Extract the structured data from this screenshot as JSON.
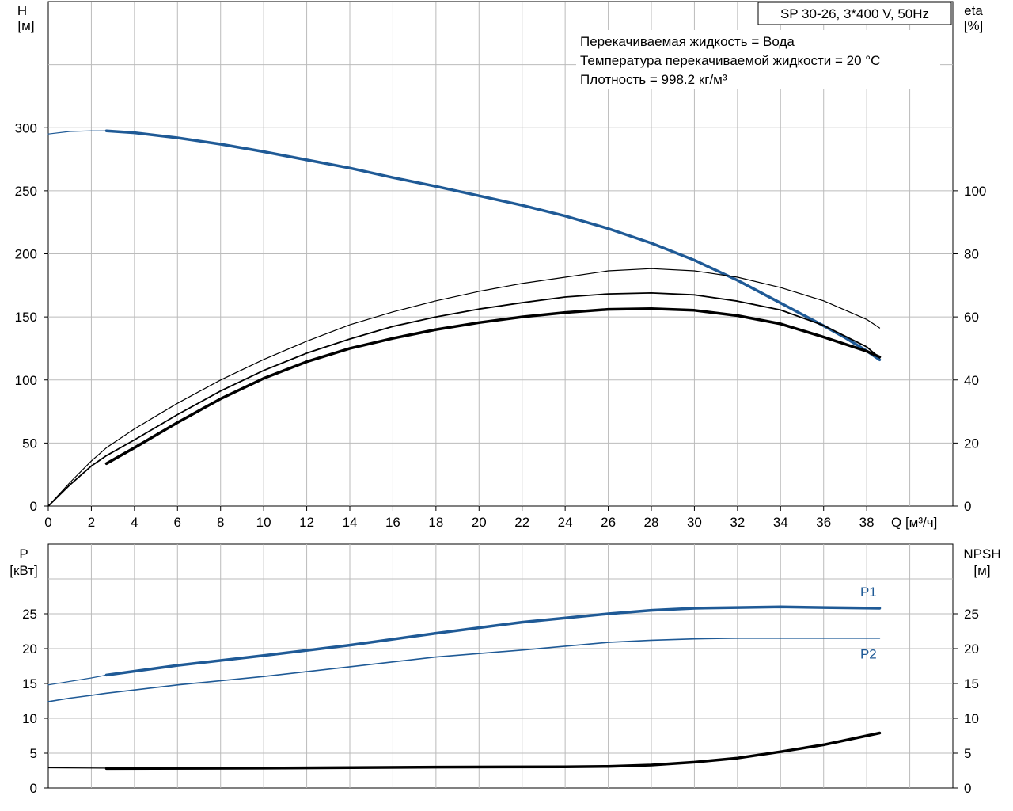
{
  "title": "SP 30-26, 3*400 V, 50Hz",
  "info_lines": [
    "Перекачиваемая жидкость = Вода",
    "Температура перекачиваемой жидкости = 20 °C",
    "Плотность = 998.2 кг/м³"
  ],
  "colors": {
    "blue": "#1f5a96",
    "black": "#000000",
    "grid": "#bbbbbb"
  },
  "chart_data": [
    {
      "type": "line",
      "name": "top",
      "xlabel": "Q [м³/ч]",
      "ylabel_left": [
        "H",
        "[м]"
      ],
      "ylabel_right": [
        "eta",
        "[%]"
      ],
      "xlim": [
        0,
        42
      ],
      "ylim_left": [
        0,
        400
      ],
      "ylim_right": [
        0,
        160
      ],
      "x_ticks": [
        0,
        2,
        4,
        6,
        8,
        10,
        12,
        14,
        16,
        18,
        20,
        22,
        24,
        26,
        28,
        30,
        32,
        34,
        36,
        38
      ],
      "y_ticks_left": [
        0,
        50,
        100,
        150,
        200,
        250,
        300
      ],
      "y_ticks_right": [
        0,
        20,
        40,
        60,
        80,
        100
      ],
      "grid": true,
      "series": [
        {
          "axis": "left",
          "color": "blue",
          "width": 1.2,
          "x": [
            0,
            1,
            2,
            2.7
          ],
          "y": [
            295,
            297,
            297.5,
            297.5
          ]
        },
        {
          "axis": "left",
          "color": "blue",
          "width": 3.5,
          "x": [
            2.7,
            4,
            6,
            8,
            10,
            12,
            14,
            16,
            18,
            20,
            22,
            24,
            26,
            28,
            30,
            32,
            34,
            36,
            37,
            38,
            38.6
          ],
          "y": [
            297.5,
            296,
            292,
            287,
            281,
            274.5,
            268,
            260.5,
            253.5,
            246,
            238.5,
            230,
            220,
            208.5,
            195,
            179,
            161,
            143,
            133.5,
            123,
            116
          ]
        },
        {
          "axis": "right",
          "color": "black",
          "width": 1.8,
          "x": [
            0,
            1,
            2,
            2.7,
            4,
            6,
            8,
            10,
            12,
            14,
            16,
            18,
            20,
            22,
            24,
            26,
            28,
            30,
            32,
            34,
            36,
            38,
            38.6
          ],
          "y": [
            0,
            6.7,
            12.7,
            16,
            21,
            29,
            36.5,
            43,
            48.5,
            53,
            57,
            60,
            62.5,
            64.5,
            66.3,
            67.3,
            67.6,
            67,
            65,
            62.2,
            57.3,
            50.5,
            47
          ]
        },
        {
          "axis": "right",
          "color": "black",
          "width": 3.5,
          "x": [
            2.7,
            4,
            6,
            8,
            10,
            12,
            14,
            16,
            18,
            20,
            22,
            24,
            26,
            28,
            30,
            32,
            34,
            36,
            38,
            38.6
          ],
          "y": [
            13.5,
            18.5,
            26.5,
            34,
            40.5,
            45.8,
            50,
            53.2,
            56,
            58.2,
            60,
            61.4,
            62.4,
            62.6,
            62.1,
            60.4,
            57.8,
            53.6,
            49.1,
            47.3
          ]
        },
        {
          "axis": "right",
          "color": "black",
          "width": 1.2,
          "x": [
            0,
            1,
            2,
            2.7,
            4,
            6,
            8,
            10,
            12,
            14,
            16,
            18,
            20,
            22,
            24,
            26,
            28,
            30,
            32,
            34,
            36,
            38,
            38.6
          ],
          "y": [
            0,
            7.4,
            14.3,
            18.5,
            24.5,
            32.6,
            40,
            46.5,
            52.3,
            57.5,
            61.6,
            65.1,
            68.1,
            70.6,
            72.6,
            74.6,
            75.3,
            74.6,
            72.6,
            69.3,
            65.1,
            59.2,
            56.5
          ]
        }
      ]
    },
    {
      "type": "line",
      "name": "bottom",
      "ylabel_left": [
        "P",
        "[кВт]"
      ],
      "ylabel_right": [
        "NPSH",
        "[м]"
      ],
      "xlim": [
        0,
        42
      ],
      "ylim_left": [
        0,
        35
      ],
      "ylim_right": [
        0,
        35
      ],
      "y_ticks_left": [
        0,
        5,
        10,
        15,
        20,
        25
      ],
      "y_ticks_right": [
        0,
        5,
        10,
        15,
        20,
        25
      ],
      "grid": true,
      "series_labels": [
        {
          "text": "P1",
          "x": 37.7,
          "y": 27.5,
          "color": "blue"
        },
        {
          "text": "P2",
          "x": 37.7,
          "y": 18.6,
          "color": "blue"
        }
      ],
      "series": [
        {
          "axis": "left",
          "color": "blue",
          "width": 1.2,
          "x": [
            0,
            1,
            2,
            2.7
          ],
          "y": [
            14.8,
            15.3,
            15.8,
            16.2
          ]
        },
        {
          "axis": "left",
          "color": "blue",
          "width": 3.5,
          "x": [
            2.7,
            6,
            10,
            14,
            18,
            22,
            26,
            28,
            30,
            32,
            34,
            36,
            38.6
          ],
          "y": [
            16.2,
            17.6,
            19.0,
            20.5,
            22.2,
            23.8,
            25.0,
            25.5,
            25.8,
            25.9,
            26.0,
            25.9,
            25.8
          ]
        },
        {
          "axis": "left",
          "color": "blue",
          "width": 1.6,
          "x": [
            0,
            1,
            2,
            2.7,
            6,
            10,
            14,
            18,
            22,
            26,
            28,
            30,
            32,
            34,
            36,
            38.6
          ],
          "y": [
            12.4,
            12.9,
            13.3,
            13.6,
            14.8,
            16.0,
            17.4,
            18.8,
            19.8,
            20.9,
            21.2,
            21.4,
            21.5,
            21.5,
            21.5,
            21.5
          ]
        },
        {
          "axis": "right",
          "color": "black",
          "width": 1.2,
          "x": [
            0,
            2.7
          ],
          "y": [
            2.9,
            2.85
          ]
        },
        {
          "axis": "right",
          "color": "black",
          "width": 3.5,
          "x": [
            2.7,
            10,
            18,
            24,
            26,
            28,
            30,
            32,
            34,
            36,
            38.6
          ],
          "y": [
            2.8,
            2.85,
            3.0,
            3.05,
            3.1,
            3.3,
            3.7,
            4.3,
            5.2,
            6.2,
            7.9
          ]
        }
      ]
    }
  ]
}
